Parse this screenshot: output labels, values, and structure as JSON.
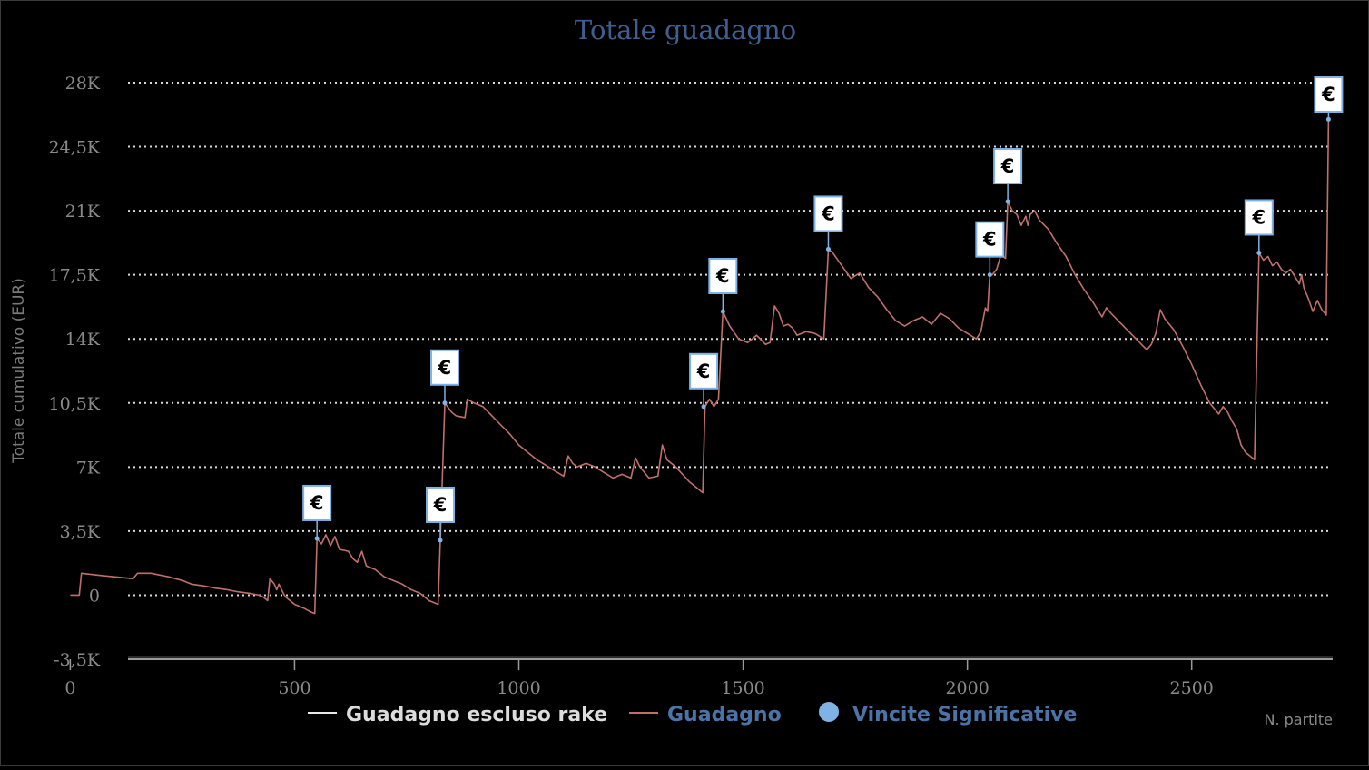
{
  "chart_data": {
    "type": "line",
    "title": "Totale guadagno",
    "xlabel": "N. partite",
    "ylabel": "Totale cumulativo (EUR)",
    "xlim": [
      -20,
      2760
    ],
    "ylim": [
      -3500,
      28000
    ],
    "y_ticks": [
      {
        "value": -3500,
        "label": "-3,5K"
      },
      {
        "value": 0,
        "label": "0"
      },
      {
        "value": 3500,
        "label": "3,5K"
      },
      {
        "value": 7000,
        "label": "7K"
      },
      {
        "value": 10500,
        "label": "10,5K"
      },
      {
        "value": 14000,
        "label": "14K"
      },
      {
        "value": 17500,
        "label": "17,5K"
      },
      {
        "value": 21000,
        "label": "21K"
      },
      {
        "value": 24500,
        "label": "24,5K"
      },
      {
        "value": 28000,
        "label": "28K"
      }
    ],
    "x_ticks": [
      {
        "value": 0,
        "label": "0"
      },
      {
        "value": 500,
        "label": "500"
      },
      {
        "value": 1000,
        "label": "1000"
      },
      {
        "value": 1500,
        "label": "1500"
      },
      {
        "value": 2000,
        "label": "2000"
      },
      {
        "value": 2500,
        "label": "2500"
      }
    ],
    "grid": true,
    "legend_position": "bottom",
    "colors": {
      "title": "#3e5f8f",
      "guadagno": "#c0706a",
      "escluso_rake": "#e8e8e8",
      "vincite": "#7fb2e5",
      "legend_blue_text": "#4a74a8",
      "legend_white_text": "#dcdcdc",
      "grid": "#d8d8d8"
    },
    "legend": [
      {
        "key": "escluso_rake",
        "label": "Guadagno escluso rake",
        "symbol": "line"
      },
      {
        "key": "guadagno",
        "label": "Guadagno",
        "symbol": "line"
      },
      {
        "key": "vincite",
        "label": "Vincite Significative",
        "symbol": "dot"
      }
    ],
    "series": [
      {
        "name": "Guadagno",
        "key": "guadagno",
        "points": [
          [
            0,
            0
          ],
          [
            20,
            0
          ],
          [
            25,
            1200
          ],
          [
            60,
            1100
          ],
          [
            100,
            1000
          ],
          [
            140,
            900
          ],
          [
            150,
            1200
          ],
          [
            180,
            1200
          ],
          [
            220,
            1000
          ],
          [
            250,
            800
          ],
          [
            270,
            600
          ],
          [
            300,
            500
          ],
          [
            320,
            400
          ],
          [
            350,
            300
          ],
          [
            370,
            200
          ],
          [
            400,
            100
          ],
          [
            420,
            0
          ],
          [
            430,
            -100
          ],
          [
            440,
            -300
          ],
          [
            445,
            900
          ],
          [
            455,
            600
          ],
          [
            460,
            300
          ],
          [
            465,
            600
          ],
          [
            475,
            100
          ],
          [
            480,
            -100
          ],
          [
            500,
            -500
          ],
          [
            520,
            -700
          ],
          [
            535,
            -900
          ],
          [
            545,
            -1000
          ],
          [
            550,
            3100
          ],
          [
            560,
            2800
          ],
          [
            570,
            3300
          ],
          [
            580,
            2700
          ],
          [
            590,
            3200
          ],
          [
            600,
            2500
          ],
          [
            620,
            2400
          ],
          [
            630,
            2000
          ],
          [
            640,
            1800
          ],
          [
            650,
            2400
          ],
          [
            660,
            1600
          ],
          [
            680,
            1400
          ],
          [
            700,
            1000
          ],
          [
            720,
            800
          ],
          [
            740,
            600
          ],
          [
            760,
            300
          ],
          [
            780,
            100
          ],
          [
            800,
            -300
          ],
          [
            820,
            -500
          ],
          [
            825,
            3000
          ],
          [
            835,
            10500
          ],
          [
            850,
            10000
          ],
          [
            860,
            9800
          ],
          [
            880,
            9700
          ],
          [
            885,
            10700
          ],
          [
            900,
            10500
          ],
          [
            920,
            10300
          ],
          [
            940,
            9800
          ],
          [
            960,
            9300
          ],
          [
            980,
            8800
          ],
          [
            1000,
            8200
          ],
          [
            1020,
            7800
          ],
          [
            1040,
            7400
          ],
          [
            1060,
            7100
          ],
          [
            1080,
            6800
          ],
          [
            1100,
            6500
          ],
          [
            1110,
            7600
          ],
          [
            1120,
            7200
          ],
          [
            1130,
            7000
          ],
          [
            1150,
            7200
          ],
          [
            1170,
            7000
          ],
          [
            1190,
            6700
          ],
          [
            1210,
            6400
          ],
          [
            1230,
            6600
          ],
          [
            1250,
            6400
          ],
          [
            1260,
            7500
          ],
          [
            1270,
            7000
          ],
          [
            1290,
            6400
          ],
          [
            1310,
            6500
          ],
          [
            1320,
            8200
          ],
          [
            1330,
            7400
          ],
          [
            1350,
            7000
          ],
          [
            1380,
            6200
          ],
          [
            1410,
            5600
          ],
          [
            1415,
            10300
          ],
          [
            1425,
            10700
          ],
          [
            1435,
            10300
          ],
          [
            1445,
            10700
          ],
          [
            1455,
            15500
          ],
          [
            1470,
            14700
          ],
          [
            1490,
            14000
          ],
          [
            1510,
            13800
          ],
          [
            1530,
            14200
          ],
          [
            1550,
            13700
          ],
          [
            1560,
            13800
          ],
          [
            1570,
            15800
          ],
          [
            1580,
            15400
          ],
          [
            1590,
            14700
          ],
          [
            1600,
            14800
          ],
          [
            1610,
            14600
          ],
          [
            1620,
            14200
          ],
          [
            1640,
            14400
          ],
          [
            1660,
            14300
          ],
          [
            1680,
            14000
          ],
          [
            1690,
            18900
          ],
          [
            1700,
            18700
          ],
          [
            1720,
            18000
          ],
          [
            1740,
            17300
          ],
          [
            1760,
            17600
          ],
          [
            1780,
            16800
          ],
          [
            1800,
            16300
          ],
          [
            1820,
            15600
          ],
          [
            1840,
            15000
          ],
          [
            1860,
            14700
          ],
          [
            1880,
            15000
          ],
          [
            1900,
            15200
          ],
          [
            1920,
            14800
          ],
          [
            1940,
            15400
          ],
          [
            1960,
            15100
          ],
          [
            1980,
            14600
          ],
          [
            2000,
            14300
          ],
          [
            2020,
            14000
          ],
          [
            2030,
            14400
          ],
          [
            2040,
            15700
          ],
          [
            2045,
            15500
          ],
          [
            2050,
            17500
          ],
          [
            2055,
            17500
          ],
          [
            2065,
            17800
          ],
          [
            2075,
            18600
          ],
          [
            2085,
            18400
          ],
          [
            2090,
            21500
          ],
          [
            2100,
            21000
          ],
          [
            2110,
            20800
          ],
          [
            2120,
            20200
          ],
          [
            2130,
            20700
          ],
          [
            2135,
            20200
          ],
          [
            2140,
            20800
          ],
          [
            2150,
            21000
          ],
          [
            2160,
            20500
          ],
          [
            2180,
            20000
          ],
          [
            2200,
            19200
          ],
          [
            2220,
            18500
          ],
          [
            2240,
            17500
          ],
          [
            2260,
            16700
          ],
          [
            2280,
            16000
          ],
          [
            2300,
            15200
          ],
          [
            2310,
            15700
          ],
          [
            2320,
            15400
          ],
          [
            2340,
            14900
          ],
          [
            2360,
            14400
          ],
          [
            2380,
            13900
          ],
          [
            2400,
            13400
          ],
          [
            2410,
            13700
          ],
          [
            2420,
            14300
          ],
          [
            2430,
            15600
          ],
          [
            2440,
            15100
          ],
          [
            2460,
            14500
          ],
          [
            2480,
            13600
          ],
          [
            2500,
            12600
          ],
          [
            2520,
            11500
          ],
          [
            2540,
            10500
          ],
          [
            2560,
            9900
          ],
          [
            2570,
            10300
          ],
          [
            2580,
            10000
          ],
          [
            2590,
            9500
          ],
          [
            2600,
            9100
          ],
          [
            2610,
            8200
          ],
          [
            2620,
            7800
          ],
          [
            2630,
            7600
          ],
          [
            2640,
            7400
          ],
          [
            2650,
            18700
          ],
          [
            2660,
            18300
          ],
          [
            2670,
            18500
          ],
          [
            2680,
            18000
          ],
          [
            2690,
            18200
          ],
          [
            2700,
            17800
          ],
          [
            2710,
            17600
          ],
          [
            2720,
            17800
          ],
          [
            2730,
            17400
          ],
          [
            2740,
            17000
          ],
          [
            2745,
            17500
          ],
          [
            2750,
            16800
          ],
          [
            2760,
            16200
          ],
          [
            2770,
            15500
          ],
          [
            2780,
            16100
          ],
          [
            2790,
            15600
          ],
          [
            2800,
            15300
          ],
          [
            2805,
            26000
          ]
        ]
      }
    ],
    "significant_wins": [
      {
        "x": 550,
        "y": 3100,
        "label": "€"
      },
      {
        "x": 825,
        "y": 3000,
        "label": "€"
      },
      {
        "x": 835,
        "y": 10500,
        "label": "€"
      },
      {
        "x": 1412,
        "y": 10300,
        "label": "€"
      },
      {
        "x": 1455,
        "y": 15500,
        "label": "€"
      },
      {
        "x": 1690,
        "y": 18900,
        "label": "€"
      },
      {
        "x": 2050,
        "y": 17500,
        "label": "€"
      },
      {
        "x": 2090,
        "y": 21500,
        "label": "€"
      },
      {
        "x": 2650,
        "y": 18700,
        "label": "€"
      },
      {
        "x": 2805,
        "y": 26000,
        "label": "€"
      }
    ]
  }
}
